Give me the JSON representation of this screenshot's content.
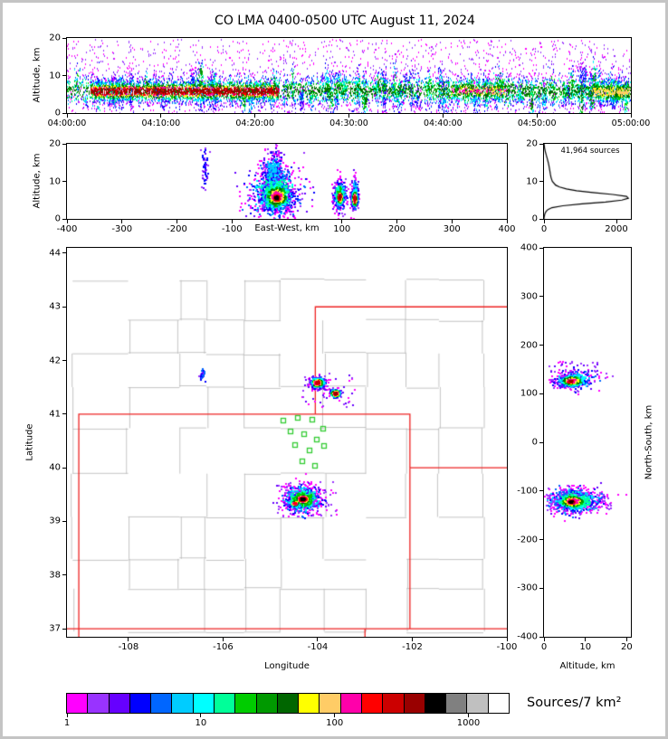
{
  "title": "CO LMA 0400-0500 UTC August 11, 2024",
  "palette": {
    "state_border": "#ee2222",
    "county": "#b5b5b5",
    "station": "#33cc33",
    "curve": "#000000"
  },
  "colorbar": {
    "label": "Sources/7 km²",
    "tick_values": [
      1,
      10,
      100,
      1000
    ],
    "tick_labels": [
      "1",
      "10",
      "100",
      "1000"
    ],
    "scale_max": 2000,
    "colors": [
      "#ff00ff",
      "#9933ff",
      "#6600ff",
      "#0000ff",
      "#0066ff",
      "#00ccff",
      "#00ffff",
      "#00ff99",
      "#00cc00",
      "#009900",
      "#006600",
      "#ffff00",
      "#ffcc66",
      "#ff00aa",
      "#ff0000",
      "#cc0000",
      "#990000",
      "#000000",
      "#808080",
      "#c0c0c0",
      "#ffffff"
    ]
  },
  "chart_data": [
    {
      "id": "time",
      "type": "scatter",
      "xlabel": "",
      "ylabel": "Altitude, km",
      "xlim": [
        0,
        3600
      ],
      "ylim": [
        0,
        20
      ],
      "small_xticks": true,
      "xticks": {
        "values": [
          0,
          600,
          1200,
          1800,
          2400,
          3000,
          3600
        ],
        "labels": [
          "04:00:00",
          "04:10:00",
          "04:20:00",
          "04:30:00",
          "04:40:00",
          "04:50:00",
          "05:00:00"
        ]
      },
      "yticks": {
        "values": [
          0,
          10,
          20
        ],
        "labels": [
          "0",
          "10",
          "20"
        ]
      },
      "point_size": [
        1,
        2
      ],
      "clusters": [
        {
          "shape": "ux",
          "x0": 0,
          "x1": 3600,
          "cy": 6.2,
          "sy": 2.1,
          "count": 4200,
          "mode": "vertical",
          "peak": 10,
          "jitter": 3
        },
        {
          "shape": "ux",
          "x0": 150,
          "x1": 1350,
          "cy": 6.0,
          "sy": 1.35,
          "count": 2400,
          "mode": "vertical",
          "peak": 16,
          "jitter": 2
        },
        {
          "shape": "ux",
          "x0": 2450,
          "x1": 2800,
          "cy": 6.2,
          "sy": 1.4,
          "count": 420,
          "mode": "vertical",
          "peak": 13,
          "jitter": 2
        },
        {
          "shape": "ux",
          "x0": 3350,
          "x1": 3590,
          "cy": 5.8,
          "sy": 1.6,
          "count": 520,
          "mode": "vertical",
          "peak": 12,
          "jitter": 2
        },
        {
          "shape": "u",
          "x0": 0,
          "x1": 3600,
          "y0": 0.3,
          "y1": 19.7,
          "count": 1500,
          "mode": "range",
          "range": [
            0,
            1
          ]
        }
      ],
      "streaks": {
        "n": 150,
        "x0": 20,
        "x1": 3580,
        "cyMean": 6.4,
        "cySd": 2.0,
        "syMin": 1.0,
        "syMax": 3.6,
        "cntMin": 8,
        "cntMax": 55,
        "peakMin": 3,
        "peakMax": 10
      }
    },
    {
      "id": "ew",
      "type": "scatter",
      "xlabel": "East-West, km",
      "ylabel": "Altitude, km",
      "xlim": [
        -400,
        400
      ],
      "ylim": [
        0,
        20
      ],
      "xticks": {
        "values": [
          -400,
          -300,
          -200,
          -100,
          100,
          200,
          300,
          400
        ],
        "labels": [
          "-400",
          "-300",
          "-200",
          "-100",
          "100",
          "200",
          "300",
          "400"
        ]
      },
      "yticks": {
        "values": [
          0,
          10,
          20
        ],
        "labels": [
          "0",
          "10",
          "20"
        ]
      },
      "point_size": [
        2,
        2
      ],
      "clusters": [
        {
          "shape": "g",
          "cx": -22,
          "cy": 7.2,
          "sx": 24,
          "sy": 3.4,
          "count": 700,
          "mode": "radial",
          "peak": 7,
          "jitter": 4
        },
        {
          "shape": "g",
          "cx": -20,
          "cy": 6.2,
          "sx": 13,
          "sy": 1.9,
          "count": 900,
          "mode": "radial",
          "peak": 13,
          "jitter": 3
        },
        {
          "shape": "g",
          "cx": -20,
          "cy": 5.8,
          "sx": 7.5,
          "sy": 1.05,
          "count": 1100,
          "mode": "radial",
          "peak": 17,
          "jitter": 1
        },
        {
          "shape": "g",
          "cx": -26,
          "cy": 13.5,
          "sx": 9,
          "sy": 2.6,
          "count": 330,
          "mode": "radial",
          "peak": 5,
          "jitter": 3
        },
        {
          "shape": "g",
          "cx": -150,
          "cy": 13,
          "sx": 3,
          "sy": 2.6,
          "count": 55,
          "mode": "range",
          "range": [
            1,
            3
          ]
        },
        {
          "shape": "g",
          "cx": 95,
          "cy": 6.6,
          "sx": 6.5,
          "sy": 2.1,
          "count": 280,
          "mode": "radial",
          "peak": 8,
          "jitter": 3
        },
        {
          "shape": "g",
          "cx": 95,
          "cy": 6.0,
          "sx": 3.2,
          "sy": 1.1,
          "count": 380,
          "mode": "radial",
          "peak": 16,
          "jitter": 2
        },
        {
          "shape": "g",
          "cx": 122,
          "cy": 6.8,
          "sx": 4.0,
          "sy": 2.2,
          "count": 130,
          "mode": "radial",
          "peak": 6,
          "jitter": 3
        },
        {
          "shape": "g",
          "cx": 122,
          "cy": 5.6,
          "sx": 2.8,
          "sy": 1.3,
          "count": 260,
          "mode": "radial",
          "peak": 15,
          "jitter": 2
        }
      ]
    },
    {
      "id": "hist",
      "type": "line",
      "annotation": "41,964 sources",
      "xlim": [
        0,
        2400
      ],
      "ylim": [
        0,
        20
      ],
      "xticks": {
        "values": [
          0,
          2000
        ],
        "labels": [
          "0",
          "2000"
        ]
      },
      "yticks": {
        "values": [
          0,
          10,
          20
        ],
        "labels": [
          "0",
          "10",
          "20"
        ]
      },
      "profile": {
        "alt": [
          0,
          0.5,
          1,
          1.5,
          2,
          2.5,
          3,
          3.5,
          4,
          4.5,
          5,
          5.5,
          6,
          6.5,
          7,
          7.5,
          8,
          8.5,
          9,
          10,
          11,
          12,
          13,
          14,
          15,
          16,
          17,
          18,
          19,
          20
        ],
        "count": [
          0,
          5,
          15,
          30,
          60,
          110,
          220,
          520,
          1050,
          1700,
          2150,
          2330,
          2280,
          1900,
          1350,
          900,
          620,
          430,
          320,
          230,
          195,
          175,
          158,
          140,
          118,
          92,
          62,
          35,
          14,
          3
        ]
      }
    },
    {
      "id": "map",
      "type": "scatter",
      "xlabel": "Longitude",
      "ylabel": "Latitude",
      "xlim": [
        -109.3,
        -100.0
      ],
      "ylim": [
        36.85,
        44.1
      ],
      "xticks": {
        "values": [
          -108,
          -106,
          -104,
          -102,
          -100
        ],
        "labels": [
          "-108",
          "-106",
          "-104",
          "-102",
          "-100"
        ]
      },
      "yticks": {
        "values": [
          37,
          38,
          39,
          40,
          41,
          42,
          43,
          44
        ],
        "labels": [
          "37",
          "38",
          "39",
          "40",
          "41",
          "42",
          "43",
          "44"
        ]
      },
      "point_size": [
        2,
        2
      ],
      "state_borders": [
        [
          [
            -109.05,
            36.85
          ],
          [
            -109.05,
            41.0
          ],
          [
            -102.05,
            41.0
          ],
          [
            -102.05,
            40.0
          ]
        ],
        [
          [
            -102.05,
            40.0
          ],
          [
            -100.0,
            40.0
          ]
        ],
        [
          [
            -102.05,
            40.0
          ],
          [
            -102.05,
            37.0
          ]
        ],
        [
          [
            -109.3,
            37.0
          ],
          [
            -100.0,
            37.0
          ]
        ],
        [
          [
            -104.05,
            41.0
          ],
          [
            -104.05,
            43.0
          ],
          [
            -100.0,
            43.0
          ]
        ],
        [
          [
            -103.0,
            36.85
          ],
          [
            -103.0,
            37.0
          ]
        ]
      ],
      "stations": [
        [
          -104.72,
          40.88
        ],
        [
          -104.42,
          40.93
        ],
        [
          -104.12,
          40.9
        ],
        [
          -103.88,
          40.72
        ],
        [
          -104.58,
          40.68
        ],
        [
          -104.28,
          40.62
        ],
        [
          -104.02,
          40.52
        ],
        [
          -104.48,
          40.42
        ],
        [
          -104.18,
          40.32
        ],
        [
          -103.86,
          40.4
        ],
        [
          -104.32,
          40.12
        ],
        [
          -104.06,
          40.03
        ]
      ],
      "clusters": [
        {
          "shape": "g",
          "cx": -104.33,
          "cy": 39.43,
          "sx": 0.2,
          "sy": 0.12,
          "count": 800,
          "mode": "radial",
          "peak": 8,
          "jitter": 4
        },
        {
          "shape": "g",
          "cx": -104.33,
          "cy": 39.43,
          "sx": 0.1,
          "sy": 0.055,
          "count": 1500,
          "mode": "radial",
          "peak": 17,
          "jitter": 1
        },
        {
          "shape": "g",
          "cx": -104.5,
          "cy": 39.35,
          "sx": 0.05,
          "sy": 0.035,
          "count": 250,
          "mode": "radial",
          "peak": 14,
          "jitter": 2
        },
        {
          "shape": "g",
          "cx": -104.02,
          "cy": 41.6,
          "sx": 0.08,
          "sy": 0.05,
          "count": 420,
          "mode": "radial",
          "peak": 15,
          "jitter": 2
        },
        {
          "shape": "g",
          "cx": -103.64,
          "cy": 41.4,
          "sx": 0.06,
          "sy": 0.04,
          "count": 220,
          "mode": "radial",
          "peak": 16,
          "jitter": 2
        },
        {
          "shape": "g",
          "cx": -106.45,
          "cy": 41.75,
          "sx": 0.03,
          "sy": 0.05,
          "count": 28,
          "mode": "range",
          "range": [
            1,
            4
          ]
        },
        {
          "shape": "u",
          "x0": -104.9,
          "x1": -103.6,
          "y0": 39.1,
          "y1": 39.75,
          "count": 60,
          "mode": "range",
          "range": [
            0,
            1
          ]
        },
        {
          "shape": "u",
          "x0": -104.4,
          "x1": -103.2,
          "y0": 41.15,
          "y1": 41.8,
          "count": 45,
          "mode": "range",
          "range": [
            0,
            2
          ]
        }
      ]
    },
    {
      "id": "ns",
      "type": "scatter",
      "xlabel": "Altitude, km",
      "ylabel_right": "North-South, km",
      "xlim": [
        0,
        21
      ],
      "ylim": [
        -400,
        400
      ],
      "xticks": {
        "values": [
          0,
          10,
          20
        ],
        "labels": [
          "0",
          "10",
          "20"
        ]
      },
      "yticks": {
        "values": [
          400,
          300,
          200,
          100,
          0,
          -100,
          -200,
          -300,
          -400
        ],
        "labels": [
          "400",
          "300",
          "200",
          "100",
          "0",
          "-100",
          "-200",
          "-300",
          "-400"
        ]
      },
      "point_size": [
        2,
        2
      ],
      "clusters": [
        {
          "shape": "g",
          "cx": 7.2,
          "cy": -118,
          "sx": 3.2,
          "sy": 13,
          "count": 650,
          "mode": "radial",
          "peak": 7,
          "jitter": 4
        },
        {
          "shape": "g",
          "cx": 6.8,
          "cy": -120,
          "sx": 1.9,
          "sy": 8,
          "count": 800,
          "mode": "radial",
          "peak": 13,
          "jitter": 3
        },
        {
          "shape": "g",
          "cx": 6.4,
          "cy": -121,
          "sx": 1.05,
          "sy": 4.5,
          "count": 1000,
          "mode": "radial",
          "peak": 17,
          "jitter": 1
        },
        {
          "shape": "u",
          "x0": 0.5,
          "x1": 16,
          "y0": -138,
          "y1": -102,
          "count": 140,
          "mode": "range",
          "range": [
            0,
            1
          ]
        },
        {
          "shape": "g",
          "cx": 6.6,
          "cy": 128,
          "sx": 1.7,
          "sy": 6.5,
          "count": 420,
          "mode": "radial",
          "peak": 13,
          "jitter": 3
        },
        {
          "shape": "g",
          "cx": 6.2,
          "cy": 127,
          "sx": 0.95,
          "sy": 3.8,
          "count": 280,
          "mode": "radial",
          "peak": 16,
          "jitter": 1
        },
        {
          "shape": "g",
          "cx": 7.5,
          "cy": 131,
          "sx": 3.2,
          "sy": 11,
          "count": 180,
          "mode": "radial",
          "peak": 6,
          "jitter": 3
        },
        {
          "shape": "u",
          "x0": 1,
          "x1": 13,
          "y0": 143,
          "y1": 168,
          "count": 40,
          "mode": "range",
          "range": [
            0,
            2
          ]
        }
      ]
    }
  ]
}
